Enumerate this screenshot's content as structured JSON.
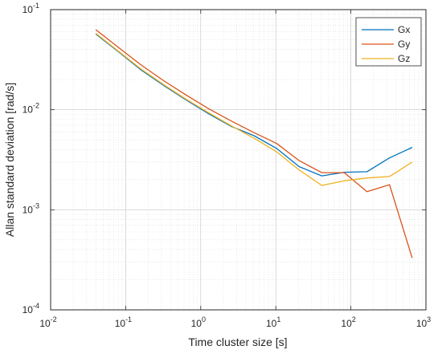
{
  "chart_data": {
    "type": "line",
    "xlabel": "Time cluster size [s]",
    "ylabel": "Allan standard deviation [rad/s]",
    "x_scale": "log",
    "y_scale": "log",
    "xlim": [
      0.01,
      1000
    ],
    "ylim": [
      0.0001,
      0.1
    ],
    "x_ticks": [
      {
        "value": 0.01,
        "base": "10",
        "exp": "-2"
      },
      {
        "value": 0.1,
        "base": "10",
        "exp": "-1"
      },
      {
        "value": 1,
        "base": "10",
        "exp": "0"
      },
      {
        "value": 10,
        "base": "10",
        "exp": "1"
      },
      {
        "value": 100,
        "base": "10",
        "exp": "2"
      },
      {
        "value": 1000,
        "base": "10",
        "exp": "3"
      }
    ],
    "y_ticks": [
      {
        "value": 0.0001,
        "base": "10",
        "exp": "-4"
      },
      {
        "value": 0.001,
        "base": "10",
        "exp": "-3"
      },
      {
        "value": 0.01,
        "base": "10",
        "exp": "-2"
      },
      {
        "value": 0.1,
        "base": "10",
        "exp": "-1"
      }
    ],
    "grid": true,
    "legend_position": "top-right",
    "series": [
      {
        "name": "Gx",
        "color": "#0072BD",
        "points": [
          [
            0.04,
            0.057
          ],
          [
            0.08,
            0.038
          ],
          [
            0.16,
            0.025
          ],
          [
            0.32,
            0.0175
          ],
          [
            0.64,
            0.0125
          ],
          [
            1.28,
            0.0091
          ],
          [
            2.56,
            0.0068
          ],
          [
            5.12,
            0.0055
          ],
          [
            10.24,
            0.0041
          ],
          [
            20.48,
            0.0027
          ],
          [
            40.96,
            0.00218
          ],
          [
            81.92,
            0.00237
          ],
          [
            163.84,
            0.0024
          ],
          [
            327.68,
            0.0033
          ],
          [
            655.36,
            0.0042
          ]
        ]
      },
      {
        "name": "Gy",
        "color": "#D95319",
        "points": [
          [
            0.04,
            0.063
          ],
          [
            0.08,
            0.042
          ],
          [
            0.16,
            0.028
          ],
          [
            0.32,
            0.0195
          ],
          [
            0.64,
            0.014
          ],
          [
            1.28,
            0.0102
          ],
          [
            2.56,
            0.0077
          ],
          [
            5.12,
            0.0059
          ],
          [
            10.24,
            0.0046
          ],
          [
            20.48,
            0.0031
          ],
          [
            40.96,
            0.00235
          ],
          [
            81.92,
            0.00235
          ],
          [
            163.84,
            0.00152
          ],
          [
            327.68,
            0.00178
          ],
          [
            655.36,
            0.00033
          ]
        ]
      },
      {
        "name": "Gz",
        "color": "#EDB120",
        "points": [
          [
            0.04,
            0.058
          ],
          [
            0.08,
            0.0385
          ],
          [
            0.16,
            0.0255
          ],
          [
            0.32,
            0.0178
          ],
          [
            0.64,
            0.0127
          ],
          [
            1.28,
            0.0093
          ],
          [
            2.56,
            0.0069
          ],
          [
            5.12,
            0.0052
          ],
          [
            10.24,
            0.0038
          ],
          [
            20.48,
            0.0025
          ],
          [
            40.96,
            0.00175
          ],
          [
            81.92,
            0.00195
          ],
          [
            163.84,
            0.00208
          ],
          [
            327.68,
            0.00215
          ],
          [
            655.36,
            0.003
          ]
        ]
      }
    ]
  }
}
